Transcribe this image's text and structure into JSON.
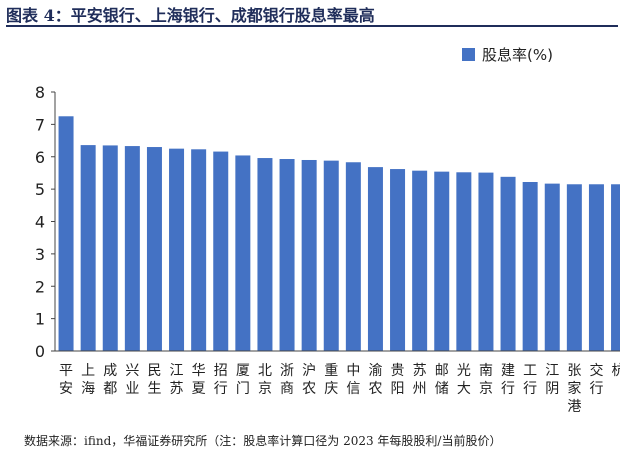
{
  "title": "图表 4：平安银行、上海银行、成都银行股息率最高",
  "source": "数据来源：ifind，华福证券研究所（注：股息率计算口径为 2023 年每股股利/当前股价）",
  "colors": {
    "bar": "#4472c4",
    "title": "#1f2d5a",
    "axis": "#444444"
  },
  "chart_data": {
    "type": "bar",
    "title": "",
    "xlabel": "",
    "ylabel": "",
    "ylim": [
      0,
      8
    ],
    "yticks": [
      "0",
      "1",
      "2",
      "3",
      "4",
      "5",
      "6",
      "7",
      "8"
    ],
    "grid": false,
    "legend_position": "top-right",
    "categories": [
      "平安",
      "上海",
      "成都",
      "兴业",
      "民生",
      "江苏",
      "华夏",
      "招行",
      "厦门",
      "北京",
      "浙商",
      "沪农",
      "重庆",
      "中信",
      "渝农",
      "贵阳",
      "苏州",
      "邮储",
      "光大",
      "南京",
      "建行",
      "工行",
      "江阴",
      "张家港",
      "交行",
      "杭州"
    ],
    "category_labels": [
      "平安",
      "上海",
      "成都",
      "兴业",
      "民生",
      "江苏",
      "华夏",
      "招行",
      "厦门",
      "北京",
      "浙商",
      "沪农",
      "重庆",
      "中信",
      "渝农",
      "贵阳",
      "苏州",
      "邮储",
      "光大",
      "南京",
      "建行",
      "工行",
      "江阴",
      "张家港",
      "交行",
      "杭"
    ],
    "series": [
      {
        "name": "股息率(%)",
        "values": [
          7.25,
          6.36,
          6.35,
          6.33,
          6.3,
          6.25,
          6.23,
          6.16,
          6.04,
          5.96,
          5.93,
          5.9,
          5.88,
          5.83,
          5.68,
          5.62,
          5.57,
          5.54,
          5.52,
          5.51,
          5.38,
          5.22,
          5.17,
          5.15,
          5.15,
          5.15
        ]
      }
    ]
  }
}
